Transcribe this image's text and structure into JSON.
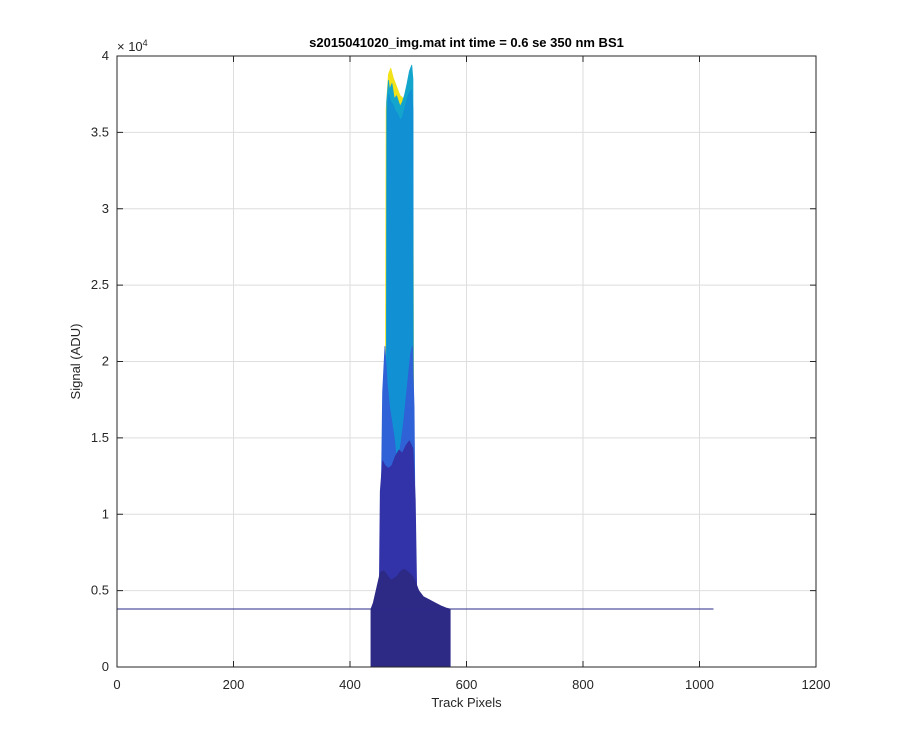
{
  "chart_data": {
    "type": "area",
    "title": "s2015041020_img.mat int time = 0.6 se  350 nm BS1",
    "xlabel": "Track Pixels",
    "ylabel": "Signal (ADU)",
    "y_exponent_label": "× 10",
    "y_exponent_power": "4",
    "xlim": [
      0,
      1200
    ],
    "ylim": [
      0,
      40000
    ],
    "x_ticks": [
      0,
      200,
      400,
      600,
      800,
      1000,
      1200
    ],
    "x_tick_labels": [
      "0",
      "200",
      "400",
      "600",
      "800",
      "1000",
      "1200"
    ],
    "y_ticks": [
      0,
      5000,
      10000,
      15000,
      20000,
      25000,
      30000,
      35000,
      40000
    ],
    "y_tick_labels": [
      "0",
      "0.5",
      "1",
      "1.5",
      "2",
      "2.5",
      "3",
      "3.5",
      "4"
    ],
    "grid": true,
    "baseline": {
      "value": 3800,
      "x_range": [
        0,
        1024
      ],
      "color": "#2a2a86"
    },
    "series": [
      {
        "color": "#f2e21a",
        "points": [
          [
            460,
            3800
          ],
          [
            462,
            36500
          ],
          [
            466,
            38800
          ],
          [
            470,
            39200
          ],
          [
            474,
            38600
          ],
          [
            480,
            38000
          ],
          [
            486,
            37400
          ],
          [
            492,
            37200
          ],
          [
            498,
            37800
          ],
          [
            502,
            38600
          ],
          [
            506,
            39000
          ],
          [
            508,
            36000
          ],
          [
            510,
            3800
          ]
        ]
      },
      {
        "color": "#14a5cc",
        "points": [
          [
            462,
            3800
          ],
          [
            463,
            37000
          ],
          [
            466,
            38400
          ],
          [
            468,
            37800
          ],
          [
            472,
            38200
          ],
          [
            476,
            37200
          ],
          [
            480,
            37400
          ],
          [
            486,
            36700
          ],
          [
            490,
            37000
          ],
          [
            494,
            37500
          ],
          [
            498,
            38200
          ],
          [
            502,
            39000
          ],
          [
            506,
            39400
          ],
          [
            508,
            38500
          ],
          [
            509,
            3800
          ]
        ]
      },
      {
        "color": "#1190d4",
        "points": [
          [
            463,
            3800
          ],
          [
            464,
            36200
          ],
          [
            466,
            37500
          ],
          [
            470,
            37000
          ],
          [
            474,
            36800
          ],
          [
            478,
            36400
          ],
          [
            482,
            36200
          ],
          [
            486,
            35800
          ],
          [
            490,
            36000
          ],
          [
            494,
            36600
          ],
          [
            498,
            37200
          ],
          [
            502,
            37600
          ],
          [
            506,
            37800
          ],
          [
            508,
            36500
          ],
          [
            509,
            3800
          ]
        ]
      },
      {
        "color": "#2f62d6",
        "points": [
          [
            452,
            3800
          ],
          [
            454,
            12000
          ],
          [
            456,
            18000
          ],
          [
            460,
            21000
          ],
          [
            464,
            18500
          ],
          [
            468,
            17000
          ],
          [
            472,
            16000
          ],
          [
            476,
            15000
          ],
          [
            480,
            13500
          ],
          [
            484,
            13800
          ],
          [
            488,
            14800
          ],
          [
            492,
            16000
          ],
          [
            496,
            17500
          ],
          [
            500,
            19000
          ],
          [
            504,
            20500
          ],
          [
            507,
            21000
          ],
          [
            510,
            17000
          ],
          [
            513,
            3800
          ]
        ]
      },
      {
        "color": "#3233a8",
        "points": [
          [
            450,
            3800
          ],
          [
            452,
            11500
          ],
          [
            456,
            13500
          ],
          [
            460,
            13200
          ],
          [
            466,
            13000
          ],
          [
            472,
            13200
          ],
          [
            478,
            13800
          ],
          [
            484,
            14200
          ],
          [
            490,
            14000
          ],
          [
            496,
            14500
          ],
          [
            502,
            14800
          ],
          [
            508,
            14300
          ],
          [
            512,
            11000
          ],
          [
            515,
            3800
          ]
        ]
      },
      {
        "color": "#2d2a86",
        "points": [
          [
            436,
            3800
          ],
          [
            440,
            4200
          ],
          [
            446,
            5200
          ],
          [
            452,
            6200
          ],
          [
            458,
            6300
          ],
          [
            464,
            6000
          ],
          [
            470,
            5700
          ],
          [
            476,
            5800
          ],
          [
            482,
            6000
          ],
          [
            488,
            6300
          ],
          [
            494,
            6400
          ],
          [
            500,
            6200
          ],
          [
            506,
            6000
          ],
          [
            512,
            5600
          ],
          [
            518,
            5000
          ],
          [
            526,
            4600
          ],
          [
            536,
            4400
          ],
          [
            546,
            4200
          ],
          [
            556,
            4000
          ],
          [
            566,
            3850
          ],
          [
            572,
            3800
          ]
        ]
      }
    ]
  }
}
